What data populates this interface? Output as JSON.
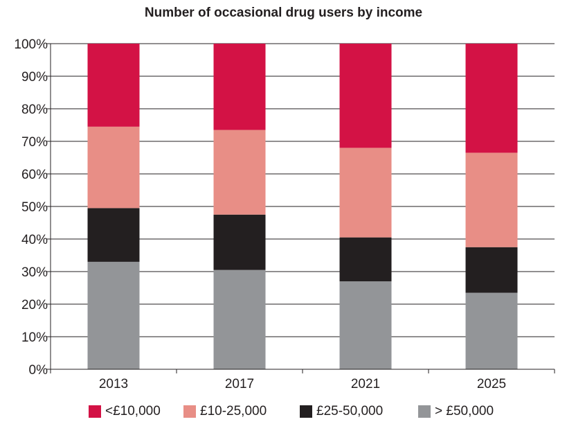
{
  "chart_data": {
    "type": "bar",
    "stacked": true,
    "title": "Number of occasional drug users by income",
    "categories": [
      "2013",
      "2017",
      "2021",
      "2025"
    ],
    "ylim": [
      0,
      100
    ],
    "yticks": [
      "0%",
      "10%",
      "20%",
      "30%",
      "40%",
      "50%",
      "60%",
      "70%",
      "80%",
      "90%",
      "100%"
    ],
    "grid": true,
    "legend_position": "bottom",
    "series": [
      {
        "name": "> £50,000",
        "color": "#939598",
        "values": [
          33,
          30.5,
          27,
          23.5
        ]
      },
      {
        "name": "£25-50,000",
        "color": "#231f20",
        "values": [
          16.5,
          17,
          13.5,
          14
        ]
      },
      {
        "name": "£10-25,000",
        "color": "#e88e86",
        "values": [
          25,
          26,
          27.5,
          29
        ]
      },
      {
        "name": "<£10,000",
        "color": "#d31245",
        "values": [
          25.5,
          26.5,
          32,
          33.5
        ]
      }
    ]
  }
}
